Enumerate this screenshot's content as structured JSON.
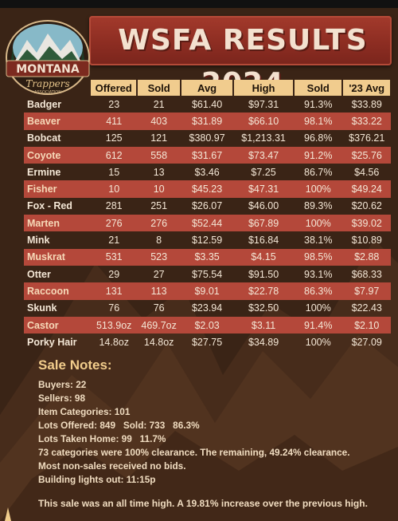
{
  "header": {
    "title": "WSFA RESULTS 2024",
    "logo_text": "Montana Trappers Association",
    "banner_color": "#8d2d22"
  },
  "table": {
    "columns": [
      "Offered",
      "Sold",
      "Avg",
      "High",
      "Sold",
      "'23 Avg"
    ],
    "rows": [
      {
        "name": "Badger",
        "offered": "23",
        "sold": "21",
        "avg": "$61.40",
        "high": "$97.31",
        "pct": "91.3%",
        "avg23": "$33.89"
      },
      {
        "name": "Beaver",
        "offered": "411",
        "sold": "403",
        "avg": "$31.89",
        "high": "$66.10",
        "pct": "98.1%",
        "avg23": "$33.22"
      },
      {
        "name": "Bobcat",
        "offered": "125",
        "sold": "121",
        "avg": "$380.97",
        "high": "$1,213.31",
        "pct": "96.8%",
        "avg23": "$376.21"
      },
      {
        "name": "Coyote",
        "offered": "612",
        "sold": "558",
        "avg": "$31.67",
        "high": "$73.47",
        "pct": "91.2%",
        "avg23": "$25.76"
      },
      {
        "name": "Ermine",
        "offered": "15",
        "sold": "13",
        "avg": "$3.46",
        "high": "$7.25",
        "pct": "86.7%",
        "avg23": "$4.56"
      },
      {
        "name": "Fisher",
        "offered": "10",
        "sold": "10",
        "avg": "$45.23",
        "high": "$47.31",
        "pct": "100%",
        "avg23": "$49.24"
      },
      {
        "name": "Fox - Red",
        "offered": "281",
        "sold": "251",
        "avg": "$26.07",
        "high": "$46.00",
        "pct": "89.3%",
        "avg23": "$20.62"
      },
      {
        "name": "Marten",
        "offered": "276",
        "sold": "276",
        "avg": "$52.44",
        "high": "$67.89",
        "pct": "100%",
        "avg23": "$39.02"
      },
      {
        "name": "Mink",
        "offered": "21",
        "sold": "8",
        "avg": "$12.59",
        "high": "$16.84",
        "pct": "38.1%",
        "avg23": "$10.89"
      },
      {
        "name": "Muskrat",
        "offered": "531",
        "sold": "523",
        "avg": "$3.35",
        "high": "$4.15",
        "pct": "98.5%",
        "avg23": "$2.88"
      },
      {
        "name": "Otter",
        "offered": "29",
        "sold": "27",
        "avg": "$75.54",
        "high": "$91.50",
        "pct": "93.1%",
        "avg23": "$68.33"
      },
      {
        "name": "Raccoon",
        "offered": "131",
        "sold": "113",
        "avg": "$9.01",
        "high": "$22.78",
        "pct": "86.3%",
        "avg23": "$7.97"
      },
      {
        "name": "Skunk",
        "offered": "76",
        "sold": "76",
        "avg": "$23.94",
        "high": "$32.50",
        "pct": "100%",
        "avg23": "$22.43"
      },
      {
        "name": "Castor",
        "offered": "513.9oz",
        "sold": "469.7oz",
        "avg": "$2.03",
        "high": "$3.11",
        "pct": "91.4%",
        "avg23": "$2.10"
      },
      {
        "name": "Porky Hair",
        "offered": "14.8oz",
        "sold": "14.8oz",
        "avg": "$27.75",
        "high": "$34.89",
        "pct": "100%",
        "avg23": "$27.09"
      }
    ],
    "header_color": "#f1cc8e",
    "stripe_color": "#b4483a"
  },
  "notes": {
    "title": "Sale Notes:",
    "lines": [
      "Buyers: 22",
      "Sellers: 98",
      "Item Categories: 101",
      "Lots Offered: 849   Sold: 733   86.3%",
      "Lots Taken Home: 99   11.7%",
      "73 categories were 100% clearance. The remaining, 49.24% clearance.",
      "Most non-sales received no bids.",
      "Building lights out: 11:15p"
    ],
    "closing": "This sale was an all time high. A 19.81% increase over the previous high."
  }
}
